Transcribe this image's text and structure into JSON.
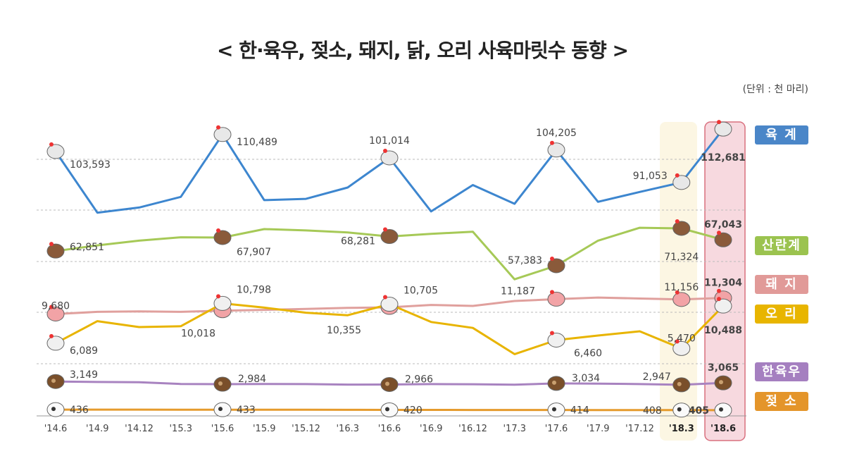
{
  "title": "< 한·육우, 젖소, 돼지, 닭, 오리 사육마릿수 동향 >",
  "unit": "(단위 : 천 마리)",
  "chart_data": {
    "type": "line",
    "title": "< 한·육우, 젖소, 돼지, 닭, 오리 사육마릿수 동향 >",
    "unit": "(단위 : 천 마리)",
    "categories": [
      "'14.6",
      "'14.9",
      "'14.12",
      "'15.3",
      "'15.6",
      "'15.9",
      "'15.12",
      "'16.3",
      "'16.6",
      "'16.9",
      "'16.12",
      "'17.3",
      "'17.6",
      "'17.9",
      "'17.12",
      "'18.3",
      "'18.6"
    ],
    "highlight": [
      "'18.3",
      "'18.6"
    ],
    "grid": true,
    "legend": "right",
    "series": [
      {
        "name": "육 계",
        "color": "#3d86cf",
        "icon": "broiler-chicken-icon",
        "values": [
          103593,
          78800,
          80900,
          85200,
          110489,
          83900,
          84400,
          89000,
          101014,
          79300,
          90000,
          82400,
          104205,
          83200,
          87200,
          91053,
          112681
        ],
        "labeled": [
          0,
          4,
          8,
          12,
          15,
          16
        ]
      },
      {
        "name": "산란계",
        "color": "#a6c957",
        "icon": "laying-hen-icon",
        "values": [
          62851,
          64980,
          66750,
          68000,
          67907,
          71050,
          70550,
          69800,
          68281,
          69280,
          70040,
          52320,
          57383,
          66750,
          71560,
          71324,
          67043
        ],
        "labeled": [
          0,
          4,
          8,
          12,
          15,
          16
        ]
      },
      {
        "name": "돼 지",
        "color": "#e0a09d",
        "icon": "pig-icon",
        "values": [
          9680,
          9900,
          9950,
          9900,
          10018,
          10100,
          10200,
          10300,
          10355,
          10600,
          10500,
          11000,
          11187,
          11350,
          11250,
          11156,
          11304
        ],
        "labeled": [
          0,
          4,
          8,
          12,
          15,
          16
        ]
      },
      {
        "name": "오 리",
        "color": "#e8b400",
        "icon": "duck-icon",
        "values": [
          6089,
          8700,
          8000,
          8100,
          10798,
          10300,
          9700,
          9400,
          10705,
          8600,
          7900,
          4800,
          6460,
          7000,
          7500,
          5470,
          10488
        ],
        "labeled": [
          0,
          4,
          8,
          12,
          15,
          16
        ]
      },
      {
        "name": "한육우",
        "color": "#a883c0",
        "icon": "cow-icon",
        "values": [
          3149,
          3120,
          3100,
          3000,
          2984,
          3000,
          2990,
          2960,
          2966,
          2990,
          2980,
          2950,
          3034,
          3020,
          2990,
          2947,
          3065
        ],
        "labeled": [
          0,
          4,
          8,
          12,
          15,
          16
        ]
      },
      {
        "name": "젖 소",
        "color": "#e59b2d",
        "icon": "dairy-cow-icon",
        "values": [
          436,
          435,
          434,
          433,
          433,
          432,
          430,
          425,
          420,
          418,
          416,
          415,
          414,
          412,
          410,
          408,
          405
        ],
        "labeled": [
          0,
          4,
          8,
          12,
          15,
          16
        ]
      }
    ],
    "legend_colors": [
      "#4a86c8",
      "#9bc34f",
      "#e19a98",
      "#e8b500",
      "#a57fc0",
      "#e4952a"
    ]
  }
}
